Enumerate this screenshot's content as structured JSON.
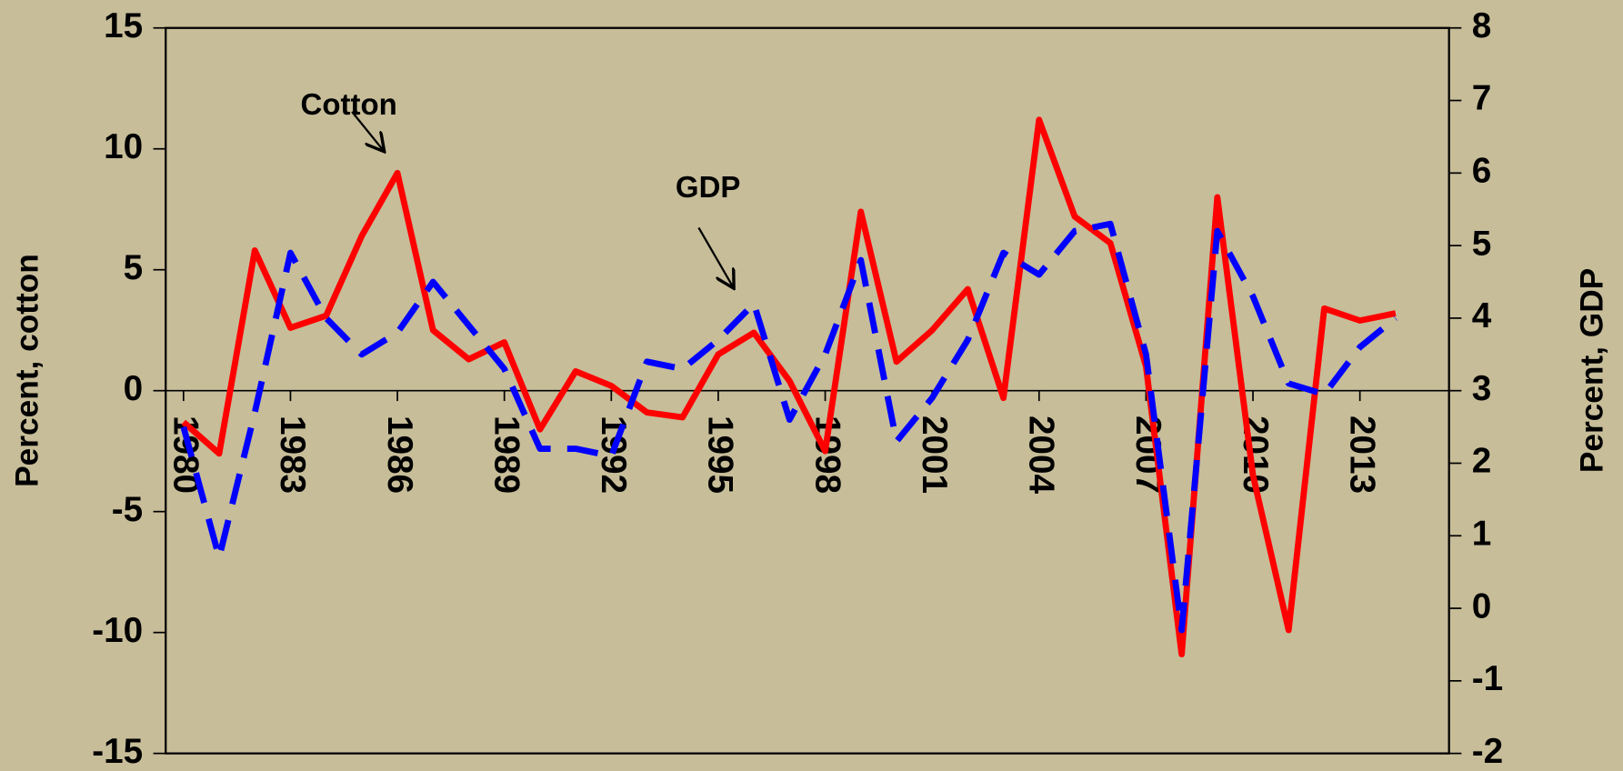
{
  "chart_data": {
    "type": "line",
    "x": [
      1980,
      1981,
      1982,
      1983,
      1984,
      1985,
      1986,
      1987,
      1988,
      1989,
      1990,
      1991,
      1992,
      1993,
      1994,
      1995,
      1996,
      1997,
      1998,
      1999,
      2000,
      2001,
      2002,
      2003,
      2004,
      2005,
      2006,
      2007,
      2008,
      2009,
      2010,
      2011,
      2012,
      2013,
      2014
    ],
    "series": [
      {
        "name": "Cotton",
        "color": "#ff0000",
        "values": [
          -1.3,
          -2.6,
          5.8,
          2.6,
          3.1,
          6.4,
          9.0,
          2.5,
          1.3,
          2.0,
          -1.6,
          0.8,
          0.2,
          -0.9,
          -1.1,
          1.5,
          2.4,
          0.4,
          -2.5,
          7.4,
          1.2,
          2.5,
          4.2,
          -0.3,
          11.2,
          7.2,
          6.1,
          1.0,
          -10.9,
          8.0,
          -3.5,
          -9.9,
          3.4,
          2.9,
          3.2
        ]
      },
      {
        "name": "GDP",
        "color": "#0000ff",
        "axis": "y2",
        "dashed": true,
        "values": [
          2.5,
          0.7,
          2.7,
          4.9,
          4.0,
          3.5,
          3.8,
          4.5,
          3.9,
          3.3,
          2.2,
          2.2,
          2.1,
          3.4,
          3.3,
          3.7,
          4.2,
          2.6,
          3.5,
          4.8,
          2.3,
          2.9,
          3.7,
          4.9,
          4.6,
          5.2,
          5.3,
          3.5,
          -0.3,
          5.2,
          4.3,
          3.1,
          2.95,
          3.6,
          4.0
        ]
      }
    ],
    "xlim": [
      1979.5,
      2015.5
    ],
    "xticks": [
      1980,
      1983,
      1986,
      1989,
      1992,
      1995,
      1998,
      2001,
      2004,
      2007,
      2010,
      2013
    ],
    "ylim": [
      -15,
      15
    ],
    "yticks": [
      -15,
      -10,
      -5,
      0,
      5,
      10,
      15
    ],
    "y2lim": [
      -2,
      8
    ],
    "y2ticks": [
      -2,
      -1,
      0,
      1,
      2,
      3,
      4,
      5,
      6,
      7,
      8
    ],
    "ylabel": "Percent, cotton",
    "y2label": "Percent, GDP",
    "annotations": [
      {
        "text": "Cotton"
      },
      {
        "text": "GDP"
      }
    ]
  }
}
